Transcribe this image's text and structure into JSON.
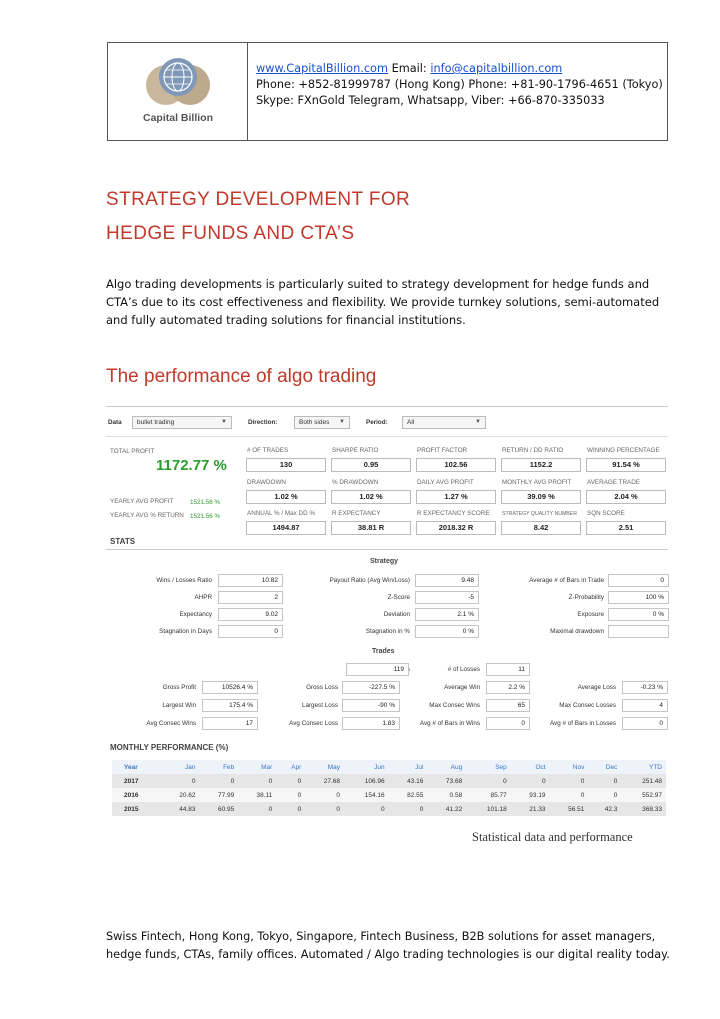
{
  "header": {
    "logo_text": "Capital Billion",
    "website": "www.CapitalBillion.com",
    "email_label": "Email:",
    "email": "info@capitalbillion.com",
    "phone_line": "Phone: +852-81999787 (Hong Kong) Phone: +81-90-1796-4651 (Tokyo)",
    "skype_line": "Skype: FXnGold Telegram, Whatsapp, Viber: +66-870-335033"
  },
  "title_line1": "STRATEGY DEVELOPMENT FOR",
  "title_line2": "HEDGE FUNDS AND CTA’S",
  "intro": "Algo trading developments is particularly suited to strategy development for hedge funds and CTA’s due to its cost effectiveness and flexibility. We provide turnkey solutions, semi-automated and fully automated trading solutions for financial institutions.",
  "section_title": "The performance of algo trading",
  "dashboard": {
    "filters": {
      "data_label": "Data",
      "data_value": "bullet trading",
      "direction_label": "Direction:",
      "direction_value": "Both sides",
      "period_label": "Period:",
      "period_value": "All"
    },
    "total_profit_label": "TOTAL PROFIT",
    "total_profit_value": "1172.77 %",
    "yearly_avg_profit_label": "YEARLY AVG PROFIT",
    "yearly_avg_profit_value": "1521.56 %",
    "yearly_avg_return_label": "YEARLY AVG % RETURN",
    "yearly_avg_return_value": "1521.56 %",
    "metrics": [
      {
        "label": "# OF TRADES",
        "value": "130"
      },
      {
        "label": "SHARPE RATIO",
        "value": "0.95"
      },
      {
        "label": "PROFIT FACTOR",
        "value": "102.56"
      },
      {
        "label": "RETURN / DD RATIO",
        "value": "1152.2"
      },
      {
        "label": "WINNING PERCENTAGE",
        "value": "91.54 %"
      },
      {
        "label": "DRAWDOWN",
        "value": "1.02 %"
      },
      {
        "label": "% DRAWDOWN",
        "value": "1.02 %"
      },
      {
        "label": "DAILY AVG PROFIT",
        "value": "1.27 %"
      },
      {
        "label": "MONTHLY AVG PROFIT",
        "value": "39.09 %"
      },
      {
        "label": "AVERAGE TRADE",
        "value": "2.04 %"
      },
      {
        "label": "ANNUAL % / Max DD %",
        "value": "1494.87"
      },
      {
        "label": "R EXPECTANCY",
        "value": "38.81 R"
      },
      {
        "label": "R EXPECTANCY SCORE",
        "value": "2018.32 R"
      },
      {
        "label": "STRATEGY QUALITY NUMBER",
        "value": "8.42"
      },
      {
        "label": "SQN SCORE",
        "value": "2.51"
      }
    ],
    "stats_heading": "STATS",
    "strategy_heading": "Strategy",
    "strategy": [
      {
        "label": "Wins / Losses Ratio",
        "value": "10.82"
      },
      {
        "label": "Payout Ratio (Avg Win/Loss)",
        "value": "9.48"
      },
      {
        "label": "Average # of Bars in Trade",
        "value": "0"
      },
      {
        "label": "AHPR",
        "value": "2"
      },
      {
        "label": "Z-Score",
        "value": "-5"
      },
      {
        "label": "Z-Probability",
        "value": "100 %"
      },
      {
        "label": "Expectancy",
        "value": "9.02"
      },
      {
        "label": "Deviation",
        "value": "2.1 %"
      },
      {
        "label": "Exposure",
        "value": "0 %"
      },
      {
        "label": "Stagnation in Days",
        "value": "0"
      },
      {
        "label": "Stagnation in %",
        "value": "0 %"
      },
      {
        "label": "Maximal drawdown",
        "value": ""
      }
    ],
    "trades_heading": "Trades",
    "trades_top": [
      {
        "label": "# of Wins",
        "value": "119"
      },
      {
        "label": "# of Losses",
        "value": "11"
      }
    ],
    "trades": [
      {
        "label": "Gross Profit",
        "value": "10526.4 %"
      },
      {
        "label": "Gross Loss",
        "value": "-227.5 %"
      },
      {
        "label": "Average Win",
        "value": "2.2 %"
      },
      {
        "label": "Average Loss",
        "value": "-0.23 %"
      },
      {
        "label": "Largest Win",
        "value": "175.4 %"
      },
      {
        "label": "Largest Loss",
        "value": "-90 %"
      },
      {
        "label": "Max Consec Wins",
        "value": "65"
      },
      {
        "label": "Max Consec Losses",
        "value": "4"
      },
      {
        "label": "Avg Consec Wins",
        "value": "17"
      },
      {
        "label": "Avg Consec Loss",
        "value": "1.83"
      },
      {
        "label": "Avg # of Bars in Wins",
        "value": "0"
      },
      {
        "label": "Avg # of Bars in Losses",
        "value": "0"
      }
    ],
    "monthly_heading": "MONTHLY PERFORMANCE (%)",
    "monthly_columns": [
      "Year",
      "Jan",
      "Feb",
      "Mar",
      "Apr",
      "May",
      "Jun",
      "Jul",
      "Aug",
      "Sep",
      "Oct",
      "Nov",
      "Dec",
      "YTD"
    ],
    "monthly_rows": [
      [
        "2017",
        "0",
        "0",
        "0",
        "0",
        "27.68",
        "106.96",
        "43.16",
        "73.68",
        "0",
        "0",
        "0",
        "0",
        "251.48"
      ],
      [
        "2016",
        "20.62",
        "77.99",
        "38.11",
        "0",
        "0",
        "154.16",
        "82.55",
        "0.58",
        "85.77",
        "93.19",
        "0",
        "0",
        "552.97"
      ],
      [
        "2015",
        "44.83",
        "60.95",
        "0",
        "0",
        "0",
        "0",
        "0",
        "41.22",
        "101.18",
        "21.33",
        "56.51",
        "42.3",
        "368.33"
      ]
    ]
  },
  "caption": "Statistical data and performance",
  "footer": "Swiss Fintech, Hong Kong, Tokyo, Singapore, Fintech Business, B2B solutions for asset managers, hedge funds, CTAs, family offices. Automated / Algo trading technologies is our digital reality today.",
  "colors": {
    "accent_red": "#c0392b",
    "profit_green": "#2a9d2a",
    "link_blue": "#1a4fd0",
    "table_header_blue": "#3a76c4"
  }
}
